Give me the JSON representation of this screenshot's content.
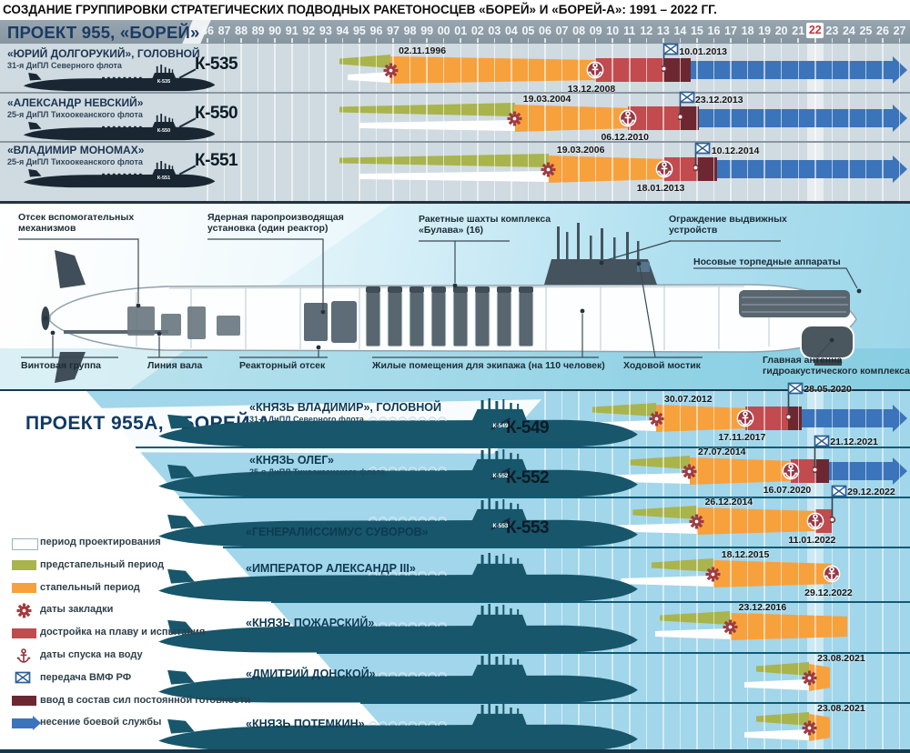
{
  "title": "СОЗДАНИЕ ГРУППИРОВКИ СТРАТЕГИЧЕСКИХ ПОДВОДНЫХ РАКЕТОНОСЦЕВ «БОРЕЙ» И «БОРЕЙ-А»: 1991 – 2022 ГГ.",
  "sections": {
    "project955_label": "ПРОЕКТ 955,  «БОРЕЙ»",
    "project955a_label": "ПРОЕКТ 955А, «БОРЕЙ-А»"
  },
  "timeline_axis": {
    "years": [
      "86",
      "87",
      "88",
      "89",
      "90",
      "91",
      "92",
      "93",
      "94",
      "95",
      "96",
      "97",
      "98",
      "99",
      "00",
      "01",
      "02",
      "03",
      "04",
      "05",
      "06",
      "07",
      "08",
      "09",
      "10",
      "11",
      "12",
      "13",
      "14",
      "15",
      "16",
      "17",
      "18",
      "19",
      "20",
      "21",
      "22",
      "23",
      "24",
      "25",
      "26",
      "27"
    ],
    "highlighted_year": "22"
  },
  "colors": {
    "design": "#ffffff",
    "pre_slipway": "#a9b44c",
    "slipway": "#f7a13d",
    "fitting": "#c14b4e",
    "readiness": "#6d2731",
    "service": "#3b74ba",
    "icon_maroon": "#9e3a42",
    "flag_blue": "#2d5f93",
    "highlight_year_text": "#c23440"
  },
  "legend": {
    "items": [
      {
        "icon": "design-box",
        "label": "период проектирования"
      },
      {
        "icon": "pre-slipway-box",
        "label": "предстапельный период"
      },
      {
        "icon": "slipway-box",
        "label": "стапельный период"
      },
      {
        "icon": "laying-gear",
        "label": "даты закладки"
      },
      {
        "icon": "fitting-box",
        "label": "достройка на плаву и испытания"
      },
      {
        "icon": "launch-anchor",
        "label": "даты спуска на воду"
      },
      {
        "icon": "handover-flag",
        "label": "передача ВМФ РФ"
      },
      {
        "icon": "readiness-box",
        "label": "ввод в состав сил постоянной готовности"
      },
      {
        "icon": "service-arrow",
        "label": "несение боевой службы"
      }
    ]
  },
  "diagram": {
    "labels": [
      "Отсек вспомогательных механизмов",
      "Ядерная паропроизводящая установка (один реактор)",
      "Ракетные шахты комплекса «Булава» (16)",
      "Ограждение выдвижных устройств",
      "Носовые торпедные аппараты",
      "Винтовая группа",
      "Линия вала",
      "Реакторный отсек",
      "Жилые помещения для экипажа (на 110 человек)",
      "Ходовой мостик",
      "Главная антенна гидроакустического комплекса"
    ]
  },
  "chart_data": {
    "type": "gantt",
    "title": "Создание группировки стратегических подводных ракетоносцев «Борей» и «Борей-А»: 1991–2022",
    "axis": {
      "start_year": 1986,
      "end_year": 2027,
      "highlighted_year": 2022
    },
    "projects": [
      {
        "name": "ПРОЕКТ 955, «БОРЕЙ»",
        "rows": [
          {
            "pennant": "К-535",
            "name": "«ЮРИЙ ДОЛГОРУКИЙ», ГОЛОВНОЙ",
            "fleet": "31-я ДиПЛ Северного флота",
            "laid_down": "02.11.1996",
            "laid_year": 1996.84,
            "launched": "13.12.2008",
            "launch_year": 2008.95,
            "delivered": "10.01.2013",
            "deliver_year": 2013.03,
            "segments": {
              "design": [
                1994.3,
                1996.84
              ],
              "pre_slipway": [
                1993.8,
                1996.84
              ],
              "slipway": [
                1996.84,
                2008.95
              ],
              "fitting": [
                2008.95,
                2013.03
              ],
              "readiness": [
                2013.03,
                2014.6
              ],
              "service": [
                2014.6,
                2026.6
              ]
            }
          },
          {
            "pennant": "К-550",
            "name": "«АЛЕКСАНДР НЕВСКИЙ»",
            "fleet": "25-я ДиПЛ Тихоокеанского флота",
            "laid_down": "19.03.2004",
            "laid_year": 2004.21,
            "launched": "06.12.2010",
            "launch_year": 2010.93,
            "delivered": "23.12.2013",
            "deliver_year": 2013.98,
            "segments": {
              "design": [
                1995.0,
                2004.21
              ],
              "pre_slipway": [
                1993.8,
                2004.21
              ],
              "slipway": [
                2004.21,
                2010.93
              ],
              "fitting": [
                2010.93,
                2013.98
              ],
              "readiness": [
                2013.98,
                2015.1
              ],
              "service": [
                2015.1,
                2026.6
              ]
            }
          },
          {
            "pennant": "К-551",
            "name": "«ВЛАДИМИР МОНОМАХ»",
            "fleet": "25-я ДиПЛ Тихоокеанского флота",
            "laid_down": "19.03.2006",
            "laid_year": 2006.21,
            "launched": "18.01.2013",
            "launch_year": 2013.05,
            "delivered": "10.12.2014",
            "deliver_year": 2014.94,
            "segments": {
              "design": [
                1995.0,
                2006.21
              ],
              "pre_slipway": [
                1993.8,
                2006.21
              ],
              "slipway": [
                2006.21,
                2013.05
              ],
              "fitting": [
                2013.05,
                2014.94
              ],
              "readiness": [
                2014.94,
                2016.2
              ],
              "service": [
                2016.2,
                2026.6
              ]
            }
          }
        ]
      },
      {
        "name": "ПРОЕКТ 955А, «БОРЕЙ-А»",
        "rows": [
          {
            "pennant": "К-549",
            "name": "«КНЯЗЬ ВЛАДИМИР», ГОЛОВНОЙ",
            "fleet": "31-я ДиПЛ Северного флота",
            "laid_down": "30.07.2012",
            "laid_year": 2012.58,
            "launched": "17.11.2017",
            "launch_year": 2017.88,
            "delivered": "28.05.2020",
            "deliver_year": 2020.41,
            "segments": {
              "design": [
                2008.0,
                2012.58
              ],
              "pre_slipway": [
                2008.8,
                2012.58
              ],
              "slipway": [
                2012.58,
                2017.88
              ],
              "fitting": [
                2017.88,
                2020.41
              ],
              "readiness": [
                2020.41,
                2021.2
              ],
              "service": [
                2021.2,
                2026.6
              ]
            }
          },
          {
            "pennant": "К-552",
            "name": "«КНЯЗЬ ОЛЕГ»",
            "fleet": "25-я ДиПЛ Тихоокеанского флота",
            "laid_down": "27.07.2014",
            "laid_year": 2014.57,
            "launched": "16.07.2020",
            "launch_year": 2020.54,
            "delivered": "21.12.2021",
            "deliver_year": 2021.97,
            "segments": {
              "design": [
                2008.6,
                2014.57
              ],
              "pre_slipway": [
                2011.0,
                2014.57
              ],
              "slipway": [
                2014.57,
                2020.54
              ],
              "fitting": [
                2020.54,
                2021.97
              ],
              "readiness": [
                2021.97,
                2022.8
              ],
              "service": [
                2022.8,
                2026.6
              ]
            }
          },
          {
            "pennant": "К-553",
            "name": "«ГЕНЕРАЛИССИМУС СУВОРОВ»",
            "fleet": null,
            "laid_down": "26.12.2014",
            "laid_year": 2014.98,
            "launched": "11.01.2022",
            "launch_year": 2022.03,
            "delivered": "29.12.2022",
            "deliver_year": 2022.99,
            "segments": {
              "design": [
                2009.5,
                2014.98
              ],
              "pre_slipway": [
                2011.2,
                2014.98
              ],
              "slipway": [
                2014.98,
                2022.03
              ],
              "fitting": [
                2022.03,
                2022.99
              ],
              "readiness": null,
              "service": null
            }
          },
          {
            "pennant": null,
            "name": "«ИМПЕРАТОР АЛЕКСАНДР III»",
            "fleet": null,
            "laid_down": "18.12.2015",
            "laid_year": 2015.96,
            "launched": "29.12.2022",
            "launch_year": 2022.99,
            "delivered": null,
            "deliver_year": null,
            "segments": {
              "design": [
                2010.5,
                2015.96
              ],
              "pre_slipway": [
                2012.3,
                2015.96
              ],
              "slipway": [
                2015.96,
                2022.99
              ],
              "fitting": null,
              "readiness": null,
              "service": null
            }
          },
          {
            "pennant": null,
            "name": "«КНЯЗЬ ПОЖАРСКИЙ»",
            "fleet": null,
            "laid_down": "23.12.2016",
            "laid_year": 2016.98,
            "launched": null,
            "launch_year": null,
            "delivered": null,
            "deliver_year": null,
            "segments": {
              "design": [
                2012.5,
                2016.98
              ],
              "pre_slipway": [
                2012.8,
                2016.98
              ],
              "slipway": [
                2016.98,
                2023.9
              ],
              "fitting": null,
              "readiness": null,
              "service": null
            }
          },
          {
            "pennant": null,
            "name": "«ДМИТРИЙ ДОНСКОЙ»",
            "fleet": null,
            "laid_down": "23.08.2021",
            "laid_year": 2021.64,
            "launched": null,
            "launch_year": null,
            "delivered": null,
            "deliver_year": null,
            "segments": {
              "design": [
                2017.8,
                2021.64
              ],
              "pre_slipway": [
                2018.5,
                2021.64
              ],
              "slipway": [
                2021.64,
                2022.9
              ],
              "fitting": null,
              "readiness": null,
              "service": null
            }
          },
          {
            "pennant": null,
            "name": "«КНЯЗЬ ПОТЕМКИН»",
            "fleet": null,
            "laid_down": "23.08.2021",
            "laid_year": 2021.64,
            "launched": null,
            "launch_year": null,
            "delivered": null,
            "deliver_year": null,
            "segments": {
              "design": [
                2017.8,
                2021.64
              ],
              "pre_slipway": [
                2018.5,
                2021.64
              ],
              "slipway": [
                2021.64,
                2022.9
              ],
              "fitting": null,
              "readiness": null,
              "service": null
            }
          }
        ]
      }
    ]
  }
}
